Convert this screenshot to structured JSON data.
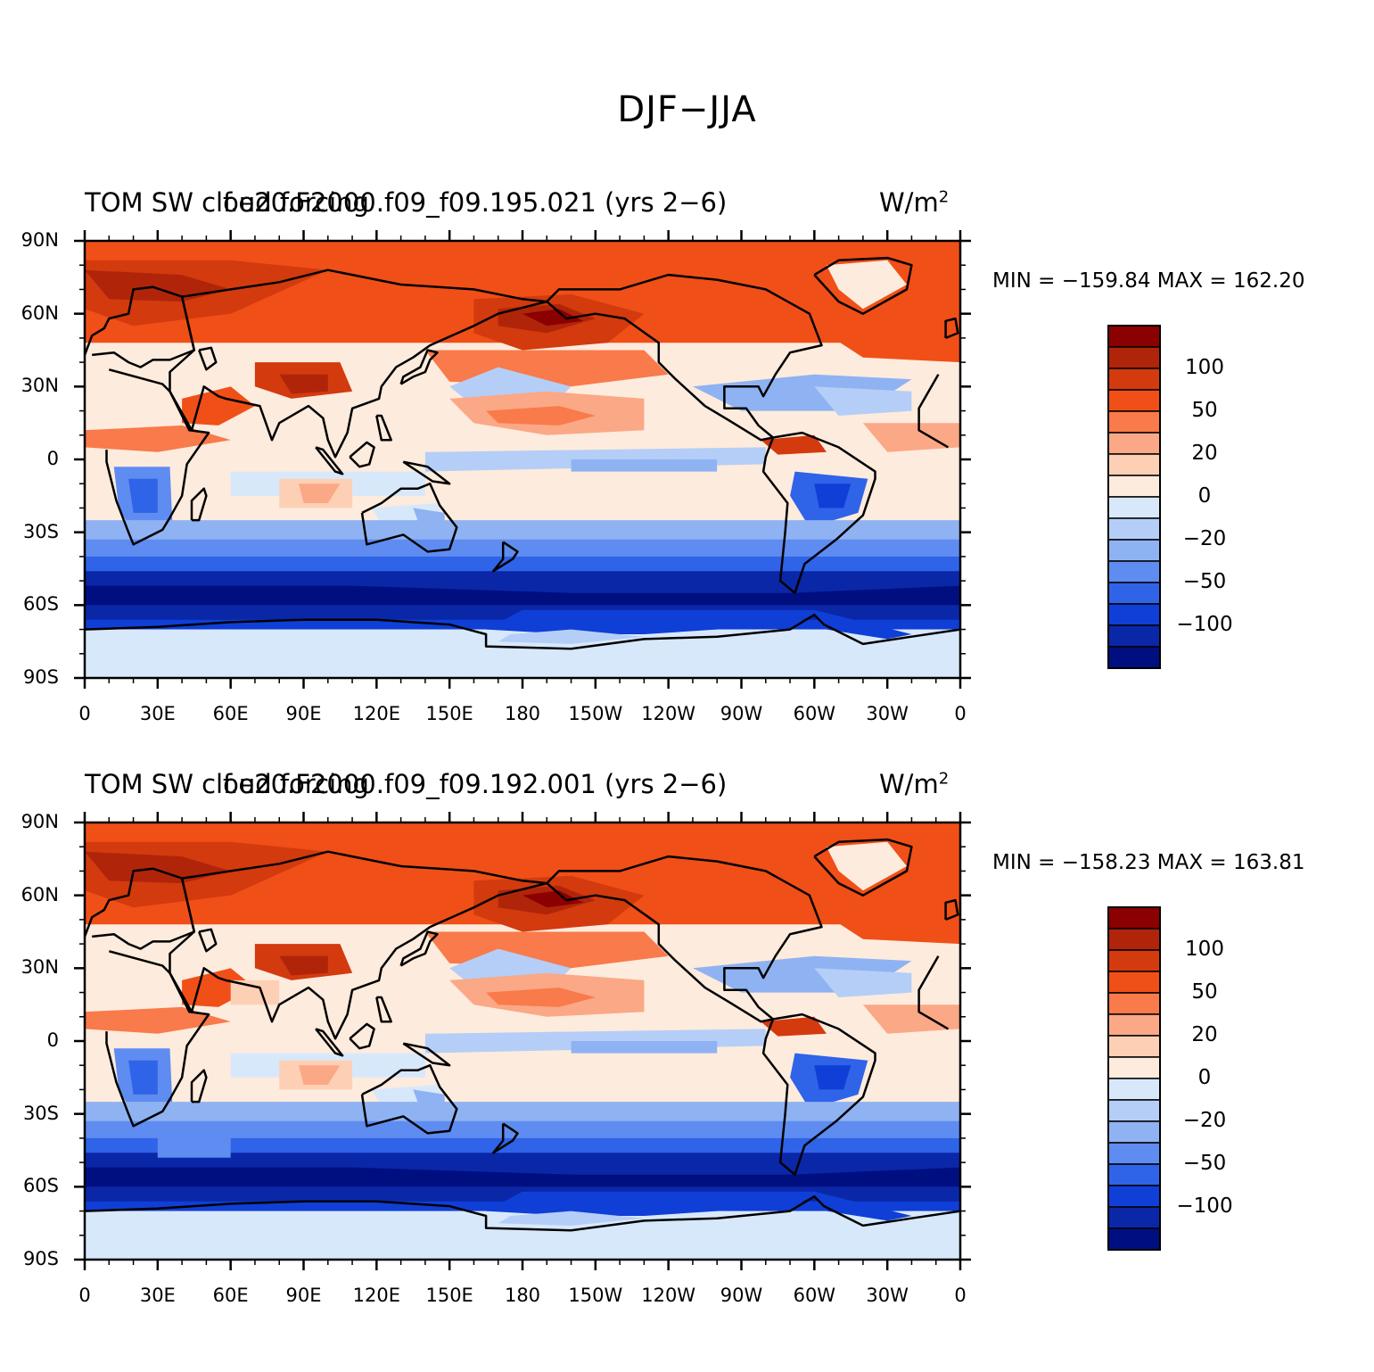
{
  "figure": {
    "title": "DJF−JJA"
  },
  "panels": [
    {
      "left_title": "TOM SW cloud forcing",
      "center_title": "f.e20.F2000.f09_f09.195.021 (yrs 2−6)",
      "units_base": "W/m",
      "units_exp": "2",
      "minmax": "MIN = −159.84 MAX = 162.20"
    },
    {
      "left_title": "TOM SW cloud forcing",
      "center_title": "f.e20.F2000.f09_f09.192.001 (yrs 2−6)",
      "units_base": "W/m",
      "units_exp": "2",
      "minmax": "MIN = −158.23 MAX = 163.81"
    }
  ],
  "map": {
    "projection": "cylindrical-equidistant",
    "lat_labels": [
      "90N",
      "60N",
      "30N",
      "0",
      "30S",
      "60S",
      "90S"
    ],
    "lon_labels": [
      "0",
      "30E",
      "60E",
      "90E",
      "120E",
      "150E",
      "180",
      "150W",
      "120W",
      "90W",
      "60W",
      "30W",
      "0"
    ]
  },
  "colorbar": {
    "labels": [
      "100",
      "50",
      "20",
      "0",
      "−20",
      "−50",
      "−100"
    ],
    "colors": [
      "#8b0000",
      "#b0250a",
      "#d33a0e",
      "#f04f17",
      "#f97a4a",
      "#fba886",
      "#fdd0b5",
      "#fdebdd",
      "#d8e8fb",
      "#b4cef7",
      "#8fb2f2",
      "#5f8cf0",
      "#2f63e8",
      "#0f3fd6",
      "#0a27a8",
      "#000f80"
    ]
  },
  "legend_colors": {
    "ocean_tropics_positive": "#fba886",
    "land_ice_south": "#d8e8fb",
    "southern_ocean": "#0a27a8",
    "arctic": "#f04f17"
  }
}
